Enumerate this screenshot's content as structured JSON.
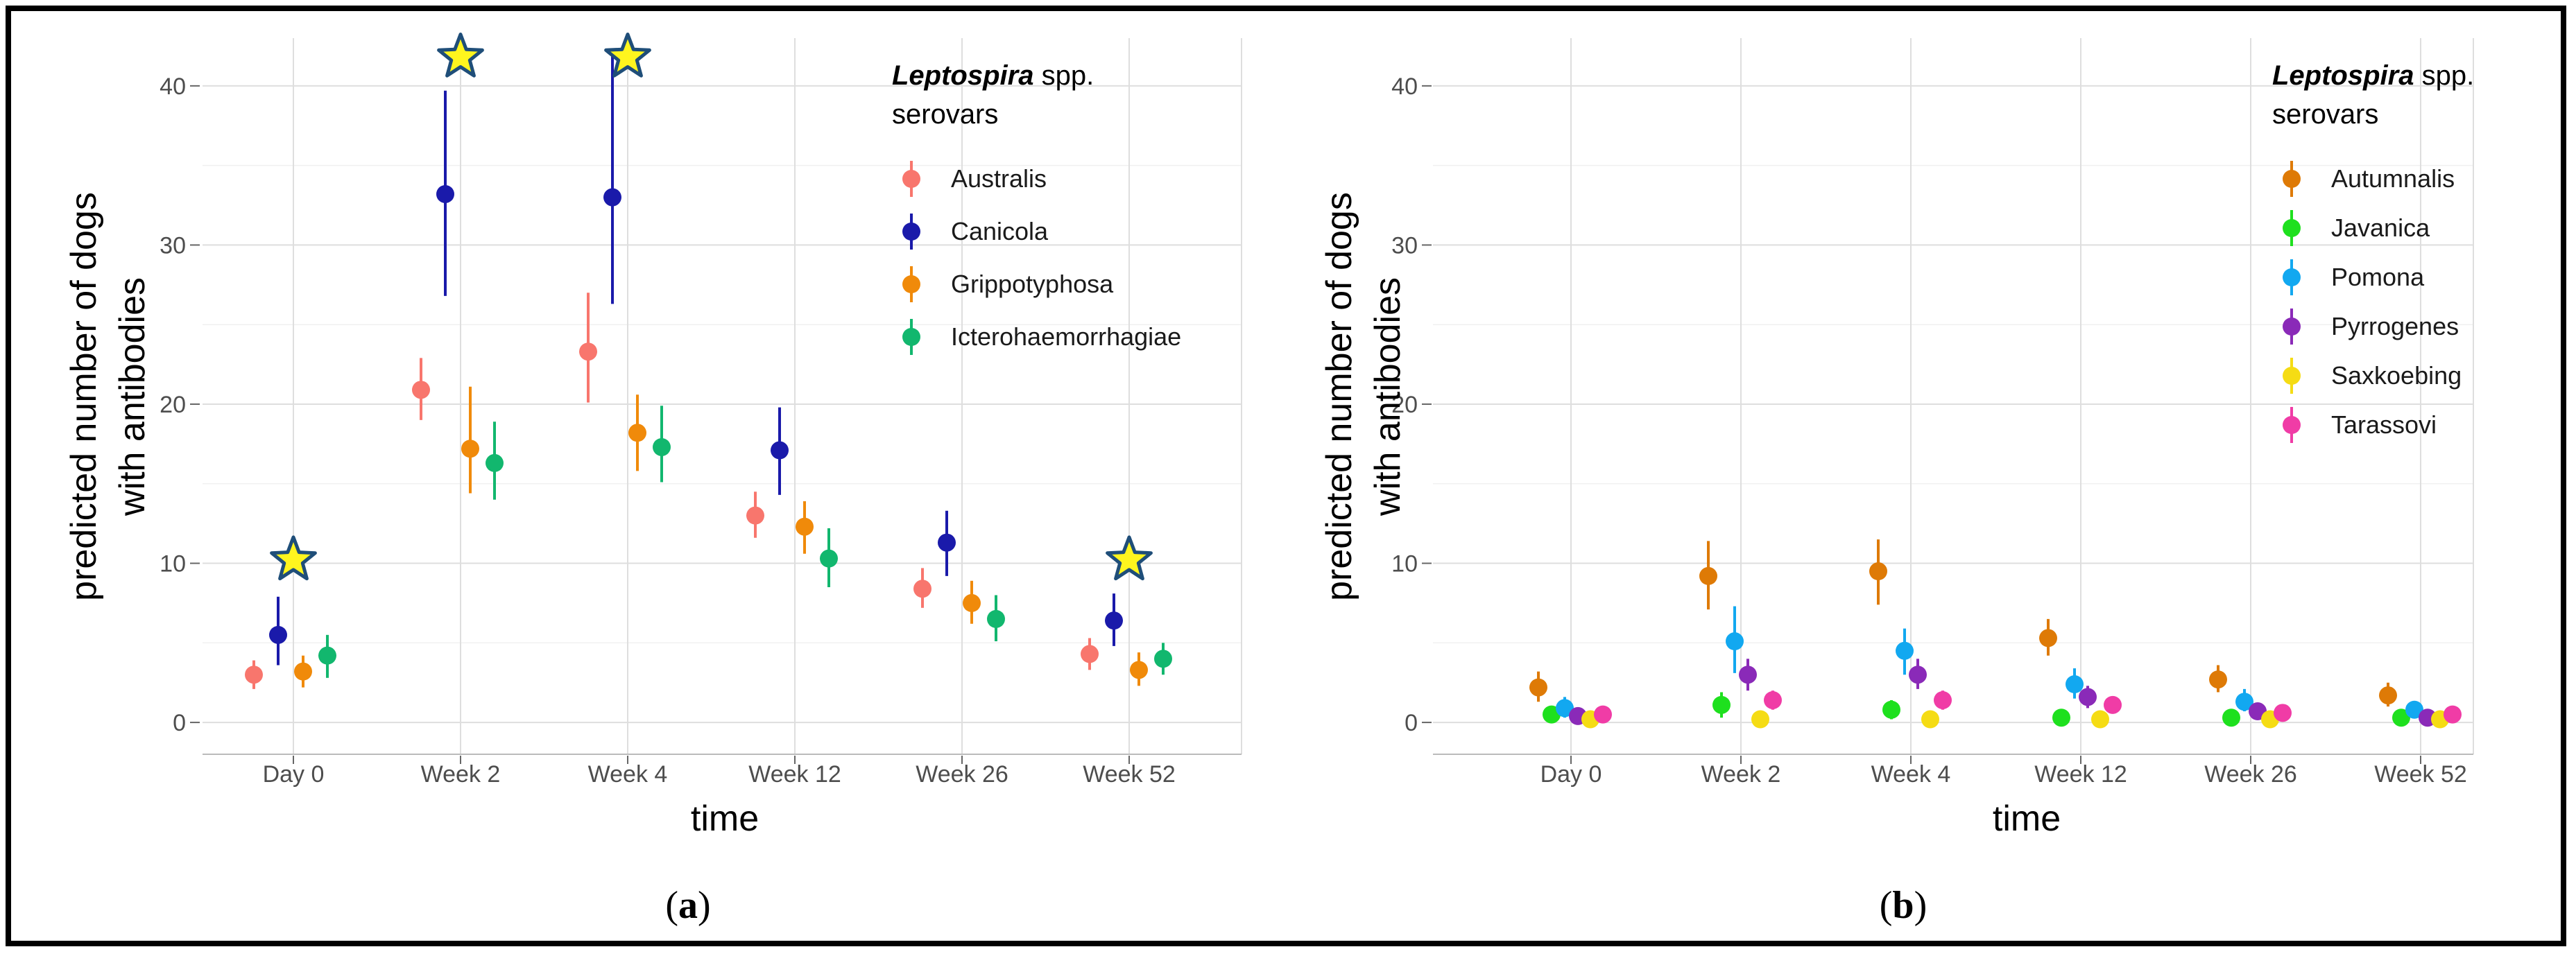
{
  "chart_data": [
    {
      "type": "scatter",
      "panel_label": "a",
      "xlabel": "time",
      "ylabel": "predicted number of dogs with antibodies",
      "ylabel_lines": [
        "predicted number of dogs",
        "with antibodies"
      ],
      "categories": [
        "Day 0",
        "Week 2",
        "Week 4",
        "Week 12",
        "Week 26",
        "Week 52"
      ],
      "ylim": [
        -2,
        43
      ],
      "yticks": [
        0,
        10,
        20,
        30,
        40
      ],
      "legend_title_italic": "Leptospira",
      "legend_title_rest": " spp.",
      "legend_title_line2": "serovars",
      "series": [
        {
          "name": "Australis",
          "color": "#F8766D",
          "values": [
            3.0,
            20.9,
            23.3,
            13.0,
            8.4,
            4.3
          ],
          "lower": [
            2.1,
            19.0,
            20.1,
            11.6,
            7.2,
            3.3
          ],
          "upper": [
            3.9,
            22.9,
            27.0,
            14.5,
            9.7,
            5.3
          ]
        },
        {
          "name": "Canicola",
          "color": "#1A1AAA",
          "values": [
            5.5,
            33.2,
            33.0,
            17.1,
            11.3,
            6.4
          ],
          "lower": [
            3.6,
            26.8,
            26.3,
            14.3,
            9.2,
            4.8
          ],
          "upper": [
            7.9,
            39.7,
            42.0,
            19.8,
            13.3,
            8.1
          ]
        },
        {
          "name": "Grippotyphosa",
          "color": "#F08A0A",
          "values": [
            3.2,
            17.2,
            18.2,
            12.3,
            7.5,
            3.3
          ],
          "lower": [
            2.2,
            14.4,
            15.8,
            10.6,
            6.2,
            2.3
          ],
          "upper": [
            4.2,
            21.1,
            20.6,
            13.9,
            8.9,
            4.4
          ]
        },
        {
          "name": "Icterohaemorrhagiae",
          "color": "#12B76E",
          "values": [
            4.2,
            16.3,
            17.3,
            10.3,
            6.5,
            4.0
          ],
          "lower": [
            2.8,
            14.0,
            15.1,
            8.5,
            5.1,
            3.0
          ],
          "upper": [
            5.5,
            18.9,
            19.9,
            12.2,
            8.0,
            5.0
          ]
        }
      ],
      "annotations": [
        {
          "symbol": "star",
          "category": "Day 0",
          "y": 10.2
        },
        {
          "symbol": "star",
          "category": "Week 2",
          "y": 41.8
        },
        {
          "symbol": "star",
          "category": "Week 4",
          "y": 41.8
        },
        {
          "symbol": "star",
          "category": "Week 52",
          "y": 10.2
        }
      ]
    },
    {
      "type": "scatter",
      "panel_label": "b",
      "xlabel": "time",
      "ylabel": "predicted number of dogs with antibodies",
      "ylabel_lines": [
        "predicted number of dogs",
        "with antibodies"
      ],
      "categories": [
        "Day 0",
        "Week 2",
        "Week 4",
        "Week 12",
        "Week 26",
        "Week 52"
      ],
      "ylim": [
        -2,
        43
      ],
      "yticks": [
        0,
        10,
        20,
        30,
        40
      ],
      "legend_title_italic": "Leptospira",
      "legend_title_rest": " spp.",
      "legend_title_line2": "serovars",
      "series": [
        {
          "name": "Autumnalis",
          "color": "#DE7A06",
          "values": [
            2.2,
            9.2,
            9.5,
            5.3,
            2.7,
            1.7
          ],
          "lower": [
            1.3,
            7.1,
            7.4,
            4.2,
            1.9,
            1.0
          ],
          "upper": [
            3.2,
            11.4,
            11.5,
            6.5,
            3.6,
            2.5
          ]
        },
        {
          "name": "Javanica",
          "color": "#1EE01E",
          "values": [
            0.5,
            1.1,
            0.8,
            0.3,
            0.3,
            0.3
          ],
          "lower": [
            0.1,
            0.3,
            0.2,
            0.0,
            0.0,
            0.0
          ],
          "upper": [
            0.9,
            1.9,
            1.4,
            0.6,
            0.6,
            0.6
          ]
        },
        {
          "name": "Pomona",
          "color": "#12A8F0",
          "values": [
            0.9,
            5.1,
            4.5,
            2.4,
            1.3,
            0.8
          ],
          "lower": [
            0.3,
            3.1,
            3.0,
            1.5,
            0.7,
            0.3
          ],
          "upper": [
            1.6,
            7.3,
            5.9,
            3.4,
            2.1,
            1.3
          ]
        },
        {
          "name": "Pyrrogenes",
          "color": "#8A2AB8",
          "values": [
            0.4,
            3.0,
            3.0,
            1.6,
            0.7,
            0.3
          ],
          "lower": [
            0.1,
            2.0,
            2.1,
            0.9,
            0.3,
            0.0
          ],
          "upper": [
            0.8,
            4.0,
            4.0,
            2.3,
            1.1,
            0.6
          ]
        },
        {
          "name": "Saxkoebing",
          "color": "#F5DC14",
          "values": [
            0.2,
            0.2,
            0.2,
            0.2,
            0.2,
            0.2
          ],
          "lower": [
            0.0,
            0.0,
            0.0,
            0.0,
            0.0,
            0.0
          ],
          "upper": [
            0.4,
            0.4,
            0.4,
            0.4,
            0.4,
            0.4
          ]
        },
        {
          "name": "Tarassovi",
          "color": "#F03CA6",
          "values": [
            0.5,
            1.4,
            1.4,
            1.1,
            0.6,
            0.5
          ],
          "lower": [
            0.1,
            0.8,
            0.8,
            0.6,
            0.2,
            0.1
          ],
          "upper": [
            0.9,
            2.0,
            2.0,
            1.6,
            1.0,
            0.9
          ]
        }
      ]
    }
  ]
}
